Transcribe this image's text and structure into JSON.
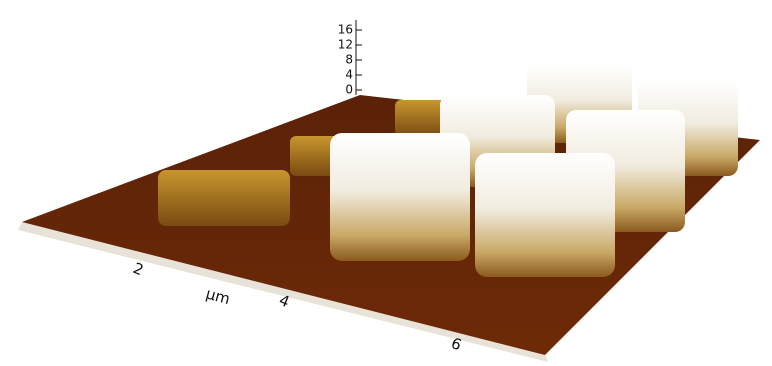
{
  "z_axis": {
    "ticks": [
      "16",
      "12",
      "8",
      "4",
      "0"
    ]
  },
  "x_axis": {
    "label": "µm",
    "ticks": [
      "2",
      "4",
      "6"
    ]
  }
}
